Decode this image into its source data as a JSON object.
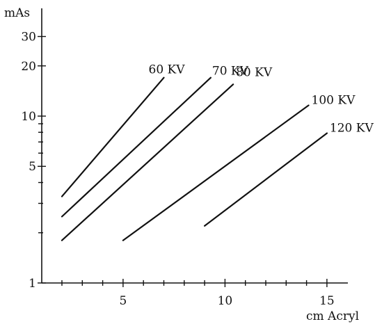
{
  "chart_data": {
    "type": "line",
    "ylabel": "mAs",
    "xlabel": "cm Acryl",
    "y_scale": "log",
    "ylim": [
      1,
      40
    ],
    "xlim": [
      1.8,
      15.5
    ],
    "grid": false,
    "y_ticks_labeled": [
      "1",
      "5",
      "10",
      "20",
      "30"
    ],
    "y_ticks_values": [
      1,
      5,
      10,
      20,
      30
    ],
    "y_minor_ticks": [
      2,
      3,
      4,
      6,
      7,
      8,
      9
    ],
    "x_ticks_labeled": [
      "5",
      "10",
      "15"
    ],
    "x_ticks_values": [
      5,
      10,
      15
    ],
    "x_minor_ticks": [
      2,
      3,
      4,
      6,
      7,
      8,
      9,
      11,
      12,
      13,
      14
    ],
    "series": [
      {
        "name": "60 KV",
        "x": [
          2,
          7
        ],
        "y": [
          3.3,
          17
        ]
      },
      {
        "name": "70 KV",
        "x": [
          2,
          9.3
        ],
        "y": [
          2.5,
          17
        ]
      },
      {
        "name": "80 KV",
        "x": [
          2,
          10.4
        ],
        "y": [
          1.8,
          15.5
        ]
      },
      {
        "name": "100 KV",
        "x": [
          5,
          14.1
        ],
        "y": [
          1.8,
          11.6
        ]
      },
      {
        "name": "120 KV",
        "x": [
          9,
          15
        ],
        "y": [
          2.2,
          7.9
        ]
      }
    ]
  }
}
